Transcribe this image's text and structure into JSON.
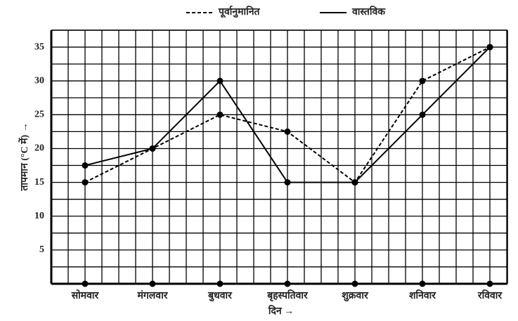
{
  "chart_data": {
    "type": "line",
    "x_label": "दिन →",
    "y_label": "तापमान (°C में) →",
    "categories": [
      "सोमवार",
      "मंगलवार",
      "बुधवार",
      "बृहस्पतिवार",
      "शुक्रवार",
      "शनिवार",
      "रविवार"
    ],
    "series": [
      {
        "name": "पूर्वानुमानित",
        "color": "#000000",
        "dash": true,
        "values": [
          15,
          20,
          25,
          22.5,
          15,
          30,
          35
        ]
      },
      {
        "name": "वास्तविक",
        "color": "#000000",
        "dash": false,
        "values": [
          17.5,
          20,
          30,
          15,
          15,
          25,
          35
        ]
      }
    ],
    "ylim": [
      0,
      37.5
    ],
    "yticks": [
      5,
      10,
      15,
      20,
      25,
      30,
      35
    ],
    "minor_yticks": [
      2.5,
      7.5,
      12.5,
      17.5,
      22.5,
      27.5,
      32.5,
      37.5
    ],
    "grid": true,
    "legend": "top"
  }
}
